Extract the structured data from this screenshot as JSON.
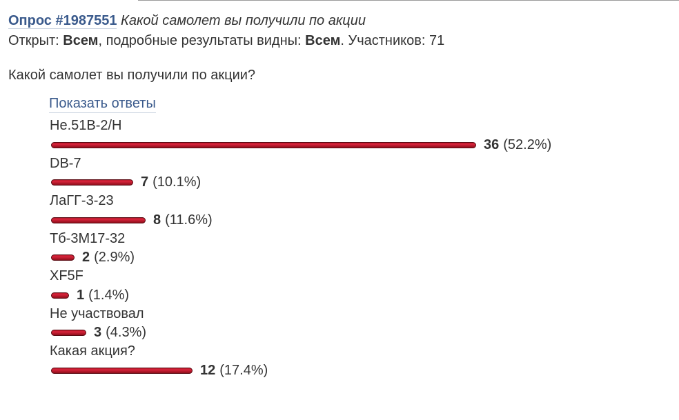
{
  "poll": {
    "id_label": "Опрос #1987551",
    "title": "Какой самолет вы получили по акции",
    "meta": {
      "open_label": "Открыт:",
      "open_value": "Всем",
      "results_label": ", подробные результаты видны:",
      "results_value": "Всем",
      "participants_label": ". Участников: 71"
    },
    "question": "Какой самолет вы получили по акции?",
    "show_answers_label": "Показать ответы",
    "bar_color": "#c8102e",
    "options": [
      {
        "label": "He.51B-2/H",
        "count": 36,
        "percent_text": "(52.2%)",
        "percent": 52.2
      },
      {
        "label": "DB-7",
        "count": 7,
        "percent_text": "(10.1%)",
        "percent": 10.1
      },
      {
        "label": "ЛаГГ-3-23",
        "count": 8,
        "percent_text": "(11.6%)",
        "percent": 11.6
      },
      {
        "label": "Тб-3М17-32",
        "count": 2,
        "percent_text": "(2.9%)",
        "percent": 2.9
      },
      {
        "label": "XF5F",
        "count": 1,
        "percent_text": "(1.4%)",
        "percent": 1.4
      },
      {
        "label": "Не участвовал",
        "count": 3,
        "percent_text": "(4.3%)",
        "percent": 4.3
      },
      {
        "label": "Какая акция?",
        "count": 12,
        "percent_text": "(17.4%)",
        "percent": 17.4
      }
    ]
  }
}
